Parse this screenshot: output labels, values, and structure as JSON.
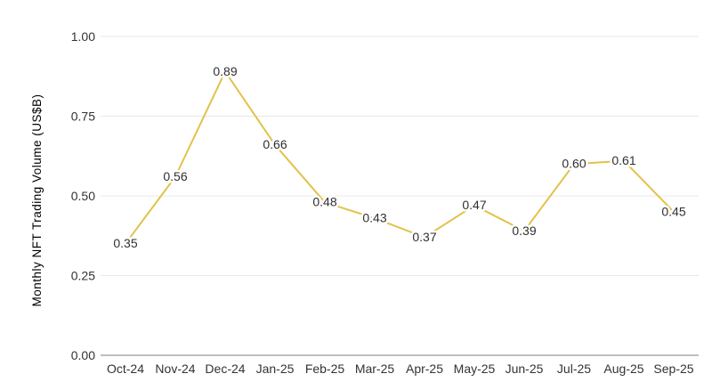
{
  "chart_data": {
    "type": "line",
    "title": "",
    "ylabel": "Monthly NFT Trading Volume (US$B)",
    "xlabel": "",
    "categories": [
      "Oct-24",
      "Nov-24",
      "Dec-24",
      "Jan-25",
      "Feb-25",
      "Mar-25",
      "Apr-25",
      "May-25",
      "Jun-25",
      "Jul-25",
      "Aug-25",
      "Sep-25"
    ],
    "series": [
      {
        "name": "Monthly NFT Trading Volume (US$B)",
        "values": [
          0.35,
          0.56,
          0.89,
          0.66,
          0.48,
          0.43,
          0.37,
          0.47,
          0.39,
          0.6,
          0.61,
          0.45
        ],
        "point_labels": [
          "0.35",
          "0.56",
          "0.89",
          "0.66",
          "0.48",
          "0.43",
          "0.37",
          "0.47",
          "0.39",
          "0.60",
          "0.61",
          "0.45"
        ]
      }
    ],
    "yticks": [
      {
        "value": 0.0,
        "label": "0.00"
      },
      {
        "value": 0.25,
        "label": "0.25"
      },
      {
        "value": 0.5,
        "label": "0.50"
      },
      {
        "value": 0.75,
        "label": "0.75"
      },
      {
        "value": 1.0,
        "label": "1.00"
      }
    ],
    "ylim": [
      0,
      1
    ],
    "grid": "horizontal-only",
    "legend": "none",
    "markers": "none",
    "colors": {
      "line": "#E2C24A",
      "data_label": "#303030",
      "tick_label": "#333333",
      "axis_title": "#2B2B2B",
      "gridline": "#E8E8E8",
      "axis_line": "#999999",
      "background": "#FFFFFF"
    }
  }
}
